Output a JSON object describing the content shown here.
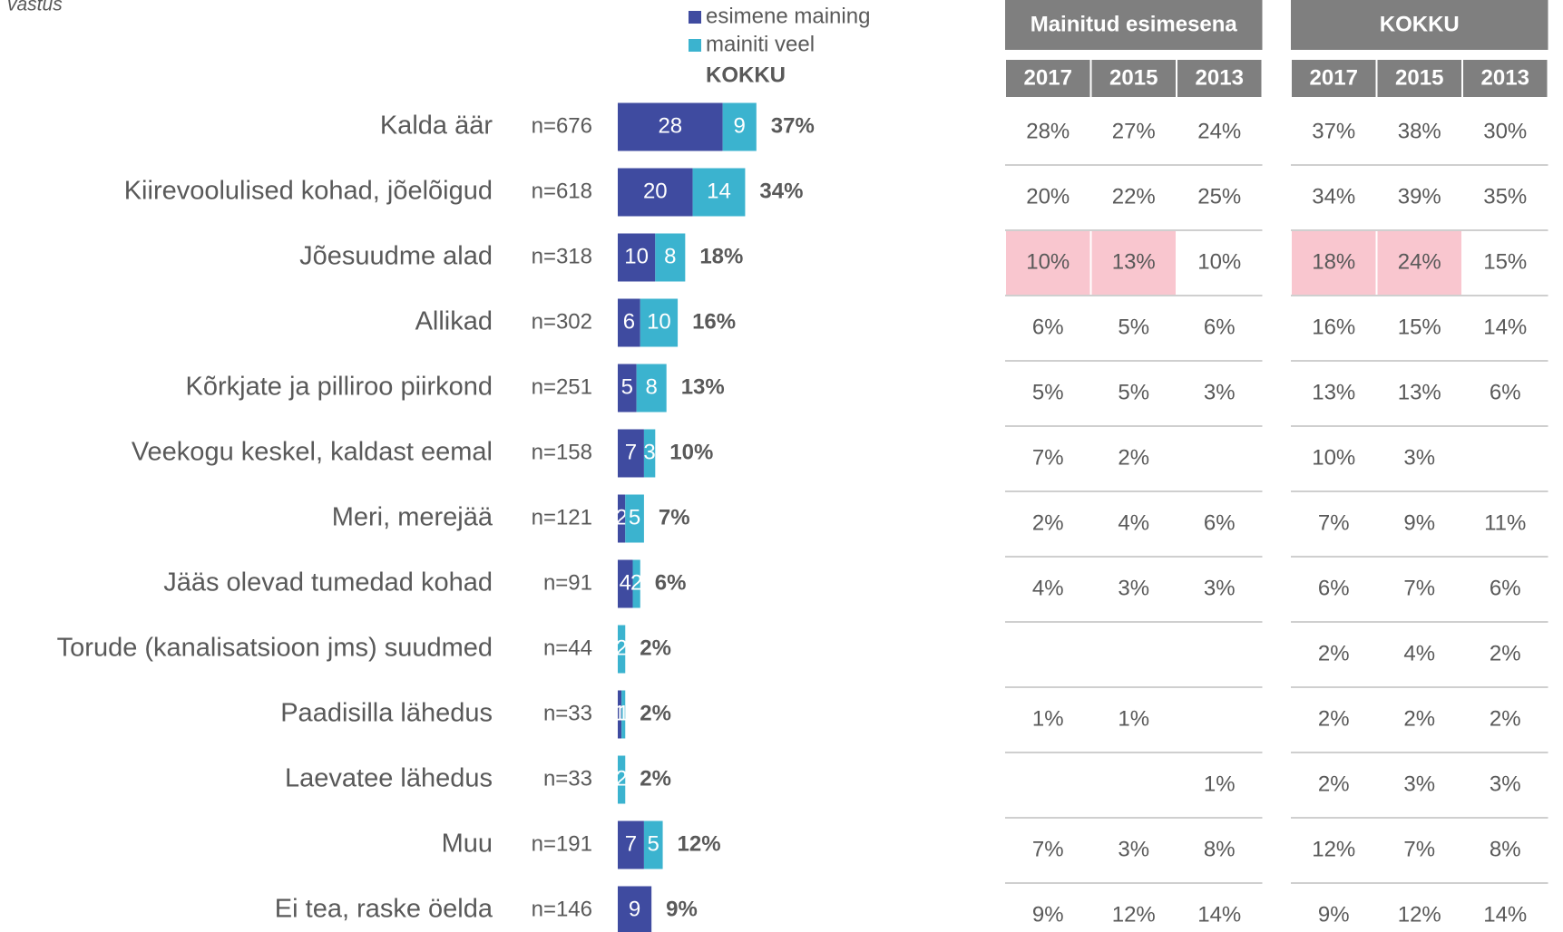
{
  "header_note": "vastus",
  "chart_data": {
    "type": "stacked-bar",
    "categories": [
      "Kalda äär",
      "Kiirevoolulised kohad, jõelõigud",
      "Jõesuudme alad",
      "Allikad",
      "Kõrkjate ja pilliroo piirkond",
      "Veekogu keskel, kaldast eemal",
      "Meri, merejää",
      "Jääs olevad tumedad kohad",
      "Torude (kanalisatsioon jms) suudmed",
      "Paadisilla lähedus",
      "Laevatee lähedus",
      "Muu",
      "Ei tea, raske öelda"
    ],
    "n_labels": [
      "n=676",
      "n=618",
      "n=318",
      "n=302",
      "n=251",
      "n=158",
      "n=121",
      "n=91",
      "n=44",
      "n=33",
      "n=33",
      "n=191",
      "n=146"
    ],
    "series": [
      {
        "name": "esimene maining",
        "color": "#3f4ba0",
        "values": [
          28,
          20,
          10,
          6,
          5,
          7,
          2,
          4,
          null,
          1,
          null,
          7,
          9
        ]
      },
      {
        "name": "mainiti veel",
        "color": "#3bb3cf",
        "values": [
          9,
          14,
          8,
          10,
          8,
          3,
          5,
          2,
          2,
          1,
          2,
          5,
          null
        ]
      }
    ],
    "totals": {
      "name": "KOKKU",
      "values": [
        37,
        34,
        18,
        16,
        13,
        10,
        7,
        6,
        2,
        2,
        2,
        12,
        9
      ],
      "value_labels": [
        "37%",
        "34%",
        "18%",
        "16%",
        "13%",
        "10%",
        "7%",
        "6%",
        "2%",
        "2%",
        "2%",
        "12%",
        "9%"
      ]
    }
  },
  "tables": [
    {
      "title": "Mainitud esimesena",
      "columns": [
        "2017",
        "2015",
        "2013"
      ],
      "highlight_color": "#f9c6cf",
      "highlighted_cells": [
        [
          2,
          0
        ],
        [
          2,
          1
        ]
      ],
      "rows": [
        [
          "28%",
          "27%",
          "24%"
        ],
        [
          "20%",
          "22%",
          "25%"
        ],
        [
          "10%",
          "13%",
          "10%"
        ],
        [
          "6%",
          "5%",
          "6%"
        ],
        [
          "5%",
          "5%",
          "3%"
        ],
        [
          "7%",
          "2%",
          null
        ],
        [
          "2%",
          "4%",
          "6%"
        ],
        [
          "4%",
          "3%",
          "3%"
        ],
        [
          null,
          null,
          null
        ],
        [
          "1%",
          "1%",
          null
        ],
        [
          null,
          null,
          "1%"
        ],
        [
          "7%",
          "3%",
          "8%"
        ],
        [
          "9%",
          "12%",
          "14%"
        ]
      ]
    },
    {
      "title": "KOKKU",
      "columns": [
        "2017",
        "2015",
        "2013"
      ],
      "highlight_color": "#f9c6cf",
      "highlighted_cells": [
        [
          2,
          0
        ],
        [
          2,
          1
        ]
      ],
      "rows": [
        [
          "37%",
          "38%",
          "30%"
        ],
        [
          "34%",
          "39%",
          "35%"
        ],
        [
          "18%",
          "24%",
          "15%"
        ],
        [
          "16%",
          "15%",
          "14%"
        ],
        [
          "13%",
          "13%",
          "6%"
        ],
        [
          "10%",
          "3%",
          null
        ],
        [
          "7%",
          "9%",
          "11%"
        ],
        [
          "6%",
          "7%",
          "6%"
        ],
        [
          "2%",
          "4%",
          "2%"
        ],
        [
          "2%",
          "2%",
          "2%"
        ],
        [
          "2%",
          "3%",
          "3%"
        ],
        [
          "12%",
          "7%",
          "8%"
        ],
        [
          "9%",
          "12%",
          "14%"
        ]
      ]
    }
  ]
}
